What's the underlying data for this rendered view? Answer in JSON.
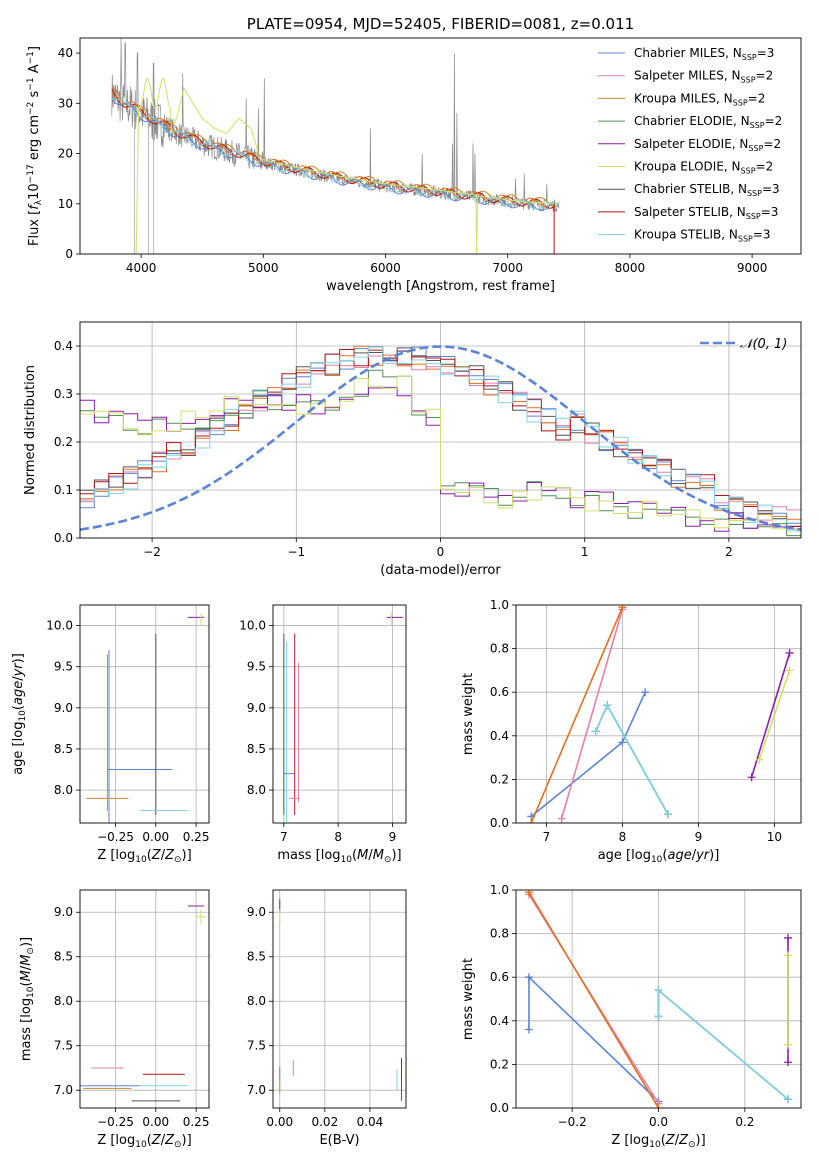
{
  "colors": {
    "Chabrier MILES": "#5b84d6",
    "Salpeter MILES": "#e680a8",
    "Kroupa MILES": "#c88a2c",
    "Chabrier ELODIE": "#4f8f4f",
    "Salpeter ELODIE": "#8b1fa8",
    "Kroupa ELODIE": "#cfe066",
    "Chabrier STELIB": "#555555",
    "Salpeter STELIB": "#b01515",
    "Kroupa STELIB": "#7fd3e6",
    "gauss": "#5b84d6",
    "spectrum_gray": "#888888",
    "orange": "#e07020"
  },
  "chart_data": [
    {
      "id": "spectrum",
      "type": "line",
      "title": "PLATE=0954, MJD=52405, FIBERID=0081, z=0.011",
      "xlabel": "wavelength [Angstrom, rest frame]",
      "ylabel": "Flux [f_λ 10^-17 erg cm^-2 s^-1 A^-1]",
      "xlim": [
        3500,
        9400
      ],
      "ylim": [
        0,
        43
      ],
      "xticks": [
        4000,
        5000,
        6000,
        7000,
        8000,
        9000
      ],
      "yticks": [
        0,
        10,
        20,
        30,
        40
      ],
      "legend": "top-right",
      "legend_entries": [
        {
          "name": "Chabrier MILES",
          "nssp": "3"
        },
        {
          "name": "Salpeter MILES",
          "nssp": "2"
        },
        {
          "name": "Kroupa MILES",
          "nssp": "2"
        },
        {
          "name": "Chabrier ELODIE",
          "nssp": "2"
        },
        {
          "name": "Salpeter ELODIE",
          "nssp": "2"
        },
        {
          "name": "Kroupa ELODIE",
          "nssp": "2"
        },
        {
          "name": "Chabrier STELIB",
          "nssp": "3"
        },
        {
          "name": "Salpeter STELIB",
          "nssp": "3"
        },
        {
          "name": "Kroupa STELIB",
          "nssp": "3"
        }
      ],
      "spectrum": {
        "x": [
          3760,
          3800,
          3850,
          3900,
          3950,
          4000,
          4100,
          4200,
          4300,
          4400,
          4500,
          4600,
          4700,
          4800,
          4900,
          5000,
          5100,
          5200,
          5300,
          5400,
          5500,
          5600,
          5700,
          5800,
          5900,
          6000,
          6100,
          6200,
          6300,
          6400,
          6500,
          6600,
          6700,
          6800,
          6900,
          7000,
          7100,
          7200,
          7300,
          7420
        ],
        "y": [
          32,
          31,
          30,
          29.5,
          29,
          28,
          26.5,
          25.5,
          24,
          23,
          22,
          21.2,
          20.5,
          19.8,
          19,
          18.3,
          17.7,
          17.1,
          16.6,
          16.1,
          15.6,
          15.1,
          14.7,
          14.3,
          13.9,
          13.5,
          13.2,
          12.9,
          12.6,
          12.3,
          12.0,
          11.7,
          11.4,
          11.1,
          10.8,
          10.5,
          10.2,
          10.0,
          9.8,
          9.6
        ]
      },
      "lines": [
        {
          "x": 3835,
          "y": 43
        },
        {
          "x": 3870,
          "y": 42
        },
        {
          "x": 3970,
          "y": 40
        },
        {
          "x": 4102,
          "y": 38
        },
        {
          "x": 4340,
          "y": 36
        },
        {
          "x": 4861,
          "y": 31
        },
        {
          "x": 4959,
          "y": 29
        },
        {
          "x": 5007,
          "y": 35
        },
        {
          "x": 5876,
          "y": 25
        },
        {
          "x": 6300,
          "y": 20
        },
        {
          "x": 6548,
          "y": 22
        },
        {
          "x": 6563,
          "y": 40
        },
        {
          "x": 6584,
          "y": 28
        },
        {
          "x": 6717,
          "y": 22
        },
        {
          "x": 6731,
          "y": 20
        },
        {
          "x": 7065,
          "y": 15
        },
        {
          "x": 7135,
          "y": 16
        },
        {
          "x": 7320,
          "y": 14
        }
      ],
      "elodie_bump": {
        "x": [
          4250,
          4300,
          4350,
          4500,
          4600,
          4700,
          4800,
          4900,
          4950
        ],
        "y": [
          24,
          28,
          33,
          27,
          25,
          24,
          27,
          25,
          21
        ]
      }
    },
    {
      "id": "residuals",
      "type": "histogram",
      "xlabel": "(data-model)/error",
      "ylabel": "Normed distribution",
      "xlim": [
        -2.5,
        2.5
      ],
      "ylim": [
        0,
        0.45
      ],
      "xticks": [
        -2,
        -1,
        0,
        1,
        2
      ],
      "yticks": [
        0.0,
        0.1,
        0.2,
        0.3,
        0.4
      ],
      "legend": "top-right",
      "gauss_label": "𝒩(0, 1)",
      "groups": [
        {
          "series": [
            "Chabrier MILES",
            "Salpeter MILES",
            "Kroupa MILES",
            "Chabrier STELIB",
            "Salpeter STELIB",
            "Kroupa STELIB"
          ],
          "shape": "center"
        },
        {
          "series": [
            "Chabrier ELODIE",
            "Salpeter ELODIE",
            "Kroupa ELODIE"
          ],
          "shape": "left"
        }
      ]
    },
    {
      "id": "age-z",
      "type": "errorbar",
      "xlabel": "Z [log10(Z/Z⊙)]",
      "ylabel": "age  [log10(age/yr)]",
      "xlim": [
        -0.47,
        0.33
      ],
      "ylim": [
        7.6,
        10.25
      ],
      "xticks": [
        -0.25,
        0.0,
        0.25
      ],
      "yticks": [
        8.0,
        8.5,
        9.0,
        9.5,
        10.0
      ],
      "points": [
        {
          "s": "Chabrier MILES",
          "x": -0.1,
          "y": 8.25,
          "xe": 0.2,
          "ye": 0
        },
        {
          "s": "Chabrier MILES",
          "x": -0.29,
          "y": 8.4,
          "xe": 0,
          "ye": 1.3
        },
        {
          "s": "Kroupa MILES",
          "x": -0.3,
          "y": 7.9,
          "xe": 0.13,
          "ye": 0
        },
        {
          "s": "Kroupa MILES",
          "x": -0.3,
          "y": 8.7,
          "xe": 0,
          "ye": 0.95
        },
        {
          "s": "Chabrier STELIB",
          "x": 0.0,
          "y": 8.8,
          "xe": 0,
          "ye": 1.1
        },
        {
          "s": "Kroupa STELIB",
          "x": 0.05,
          "y": 7.75,
          "xe": 0.15,
          "ye": 0
        },
        {
          "s": "Salpeter ELODIE",
          "x": 0.25,
          "y": 10.1,
          "xe": 0.05,
          "ye": 0
        },
        {
          "s": "Kroupa ELODIE",
          "x": 0.28,
          "y": 10.07,
          "xe": 0,
          "ye": 0.08
        }
      ]
    },
    {
      "id": "age-mass",
      "type": "errorbar",
      "xlabel": "mass [log10(M/M⊙)]",
      "ylabel": "",
      "xlim": [
        6.8,
        9.25
      ],
      "ylim": [
        7.6,
        10.25
      ],
      "xticks": [
        7,
        8,
        9
      ],
      "yticks": [
        8.0,
        8.5,
        9.0,
        9.5,
        10.0
      ],
      "points": [
        {
          "s": "Chabrier STELIB",
          "x": 7.0,
          "y": 8.8,
          "xe": 0,
          "ye": 1.1
        },
        {
          "s": "Kroupa STELIB",
          "x": 7.05,
          "y": 8.7,
          "xe": 0,
          "ye": 1.1
        },
        {
          "s": "Chabrier MILES",
          "x": 7.1,
          "y": 8.2,
          "xe": 0.1,
          "ye": 0
        },
        {
          "s": "Salpeter STELIB",
          "x": 7.2,
          "y": 8.8,
          "xe": 0,
          "ye": 1.1
        },
        {
          "s": "Salpeter MILES",
          "x": 7.2,
          "y": 7.9,
          "xe": 0.1,
          "ye": 0
        },
        {
          "s": "Salpeter MILES",
          "x": 7.27,
          "y": 8.7,
          "xe": 0,
          "ye": 0.85
        },
        {
          "s": "Salpeter ELODIE",
          "x": 9.05,
          "y": 10.1,
          "xe": 0.15,
          "ye": 0
        },
        {
          "s": "Kroupa ELODIE",
          "x": 8.98,
          "y": 10.08,
          "xe": 0,
          "ye": 0.08
        }
      ]
    },
    {
      "id": "weight-age",
      "type": "line",
      "xlabel": "age  [log10(age/yr)]",
      "ylabel": "mass weight",
      "xlim": [
        6.6,
        10.35
      ],
      "ylim": [
        0,
        1.0
      ],
      "xticks": [
        7,
        8,
        9,
        10
      ],
      "yticks": [
        0.0,
        0.2,
        0.4,
        0.6,
        0.8,
        1.0
      ],
      "series": [
        {
          "s": "Chabrier MILES",
          "x": [
            6.8,
            8.0,
            8.3
          ],
          "y": [
            0.03,
            0.37,
            0.6
          ]
        },
        {
          "s": "Salpeter MILES",
          "x": [
            7.2,
            8.0
          ],
          "y": [
            0.02,
            0.98
          ]
        },
        {
          "s": "Kroupa MILES",
          "x": [
            6.8,
            8.0
          ],
          "y": [
            0.0,
            0.99
          ]
        },
        {
          "s": "Chabrier STELIB",
          "x": [
            7.65,
            7.8,
            8.6
          ],
          "y": [
            0.42,
            0.54,
            0.04
          ]
        },
        {
          "s": "Kroupa STELIB",
          "x": [
            7.65,
            7.8,
            8.6
          ],
          "y": [
            0.42,
            0.54,
            0.04
          ]
        },
        {
          "s": "Salpeter ELODIE",
          "x": [
            9.7,
            10.2
          ],
          "y": [
            0.21,
            0.78
          ]
        },
        {
          "s": "Kroupa ELODIE",
          "x": [
            9.8,
            10.2
          ],
          "y": [
            0.29,
            0.7
          ]
        }
      ]
    },
    {
      "id": "mass-z",
      "type": "errorbar",
      "xlabel": "Z [log10(Z/Z⊙)]",
      "ylabel": "mass [log10(M/M⊙)]",
      "xlim": [
        -0.47,
        0.33
      ],
      "ylim": [
        6.8,
        9.25
      ],
      "xticks": [
        -0.25,
        0.0,
        0.25
      ],
      "yticks": [
        7.0,
        7.5,
        8.0,
        8.5,
        9.0
      ],
      "points": [
        {
          "s": "Salpeter MILES",
          "x": -0.3,
          "y": 7.25,
          "xe": 0.1,
          "ye": 0
        },
        {
          "s": "Chabrier MILES",
          "x": -0.3,
          "y": 7.05,
          "xe": 0.2,
          "ye": 0
        },
        {
          "s": "Kroupa MILES",
          "x": -0.3,
          "y": 7.02,
          "xe": 0.15,
          "ye": 0
        },
        {
          "s": "Salpeter STELIB",
          "x": 0.05,
          "y": 7.18,
          "xe": 0.13,
          "ye": 0
        },
        {
          "s": "Kroupa STELIB",
          "x": 0.05,
          "y": 7.05,
          "xe": 0.15,
          "ye": 0
        },
        {
          "s": "Chabrier STELIB",
          "x": 0.0,
          "y": 6.88,
          "xe": 0.15,
          "ye": 0
        },
        {
          "s": "Salpeter ELODIE",
          "x": 0.25,
          "y": 9.07,
          "xe": 0.05,
          "ye": 0
        },
        {
          "s": "Kroupa ELODIE",
          "x": 0.28,
          "y": 8.95,
          "xe": 0.03,
          "ye": 0.08
        }
      ]
    },
    {
      "id": "mass-ebv",
      "type": "errorbar",
      "xlabel": "E(B-V)",
      "ylabel": "",
      "xlim": [
        -0.003,
        0.056
      ],
      "ylim": [
        6.8,
        9.25
      ],
      "xticks": [
        0.0,
        0.02,
        0.04
      ],
      "yticks": [
        7.0,
        7.5,
        8.0,
        8.5,
        9.0
      ],
      "points": [
        {
          "s": "Salpeter ELODIE",
          "x": 0.0,
          "y": 9.07,
          "xe": 0,
          "ye": 0.08
        },
        {
          "s": "Kroupa ELODIE",
          "x": 0.0,
          "y": 8.95,
          "xe": 0,
          "ye": 0.08
        },
        {
          "s": "Chabrier MILES",
          "x": 0.0,
          "y": 7.18,
          "xe": 0,
          "ye": 0.08
        },
        {
          "s": "Kroupa MILES",
          "x": 0.0,
          "y": 7.05,
          "xe": 0,
          "ye": 0.08
        },
        {
          "s": "Salpeter MILES",
          "x": 0.006,
          "y": 7.25,
          "xe": 0,
          "ye": 0.09
        },
        {
          "s": "Kroupa STELIB",
          "x": 0.052,
          "y": 7.12,
          "xe": 0,
          "ye": 0.12
        },
        {
          "s": "Salpeter STELIB",
          "x": 0.054,
          "y": 7.18,
          "xe": 0,
          "ye": 0.18
        },
        {
          "s": "Chabrier STELIB",
          "x": 0.054,
          "y": 7.0,
          "xe": 0,
          "ye": 0.12
        }
      ]
    },
    {
      "id": "weight-z",
      "type": "line",
      "xlabel": "Z [log10(Z/Z⊙)]",
      "ylabel": "mass weight",
      "xlim": [
        -0.33,
        0.33
      ],
      "ylim": [
        0,
        1.0
      ],
      "xticks": [
        -0.2,
        0.0,
        0.2
      ],
      "yticks": [
        0.0,
        0.2,
        0.4,
        0.6,
        0.8,
        1.0
      ],
      "series": [
        {
          "s": "Chabrier MILES",
          "x": [
            -0.3,
            -0.3,
            0.0
          ],
          "y": [
            0.36,
            0.6,
            0.03
          ]
        },
        {
          "s": "Salpeter MILES",
          "x": [
            -0.3,
            0.0
          ],
          "y": [
            0.98,
            0.02
          ]
        },
        {
          "s": "Kroupa MILES",
          "x": [
            -0.3,
            0.0
          ],
          "y": [
            0.99,
            0.0
          ]
        },
        {
          "s": "Chabrier STELIB",
          "x": [
            0.0,
            0.0,
            0.3
          ],
          "y": [
            0.42,
            0.54,
            0.04
          ]
        },
        {
          "s": "Kroupa STELIB",
          "x": [
            0.0,
            0.0,
            0.3
          ],
          "y": [
            0.42,
            0.54,
            0.04
          ]
        },
        {
          "s": "Salpeter ELODIE",
          "x": [
            0.3,
            0.3
          ],
          "y": [
            0.21,
            0.78
          ]
        },
        {
          "s": "Kroupa ELODIE",
          "x": [
            0.3,
            0.3
          ],
          "y": [
            0.29,
            0.7
          ]
        }
      ]
    }
  ]
}
